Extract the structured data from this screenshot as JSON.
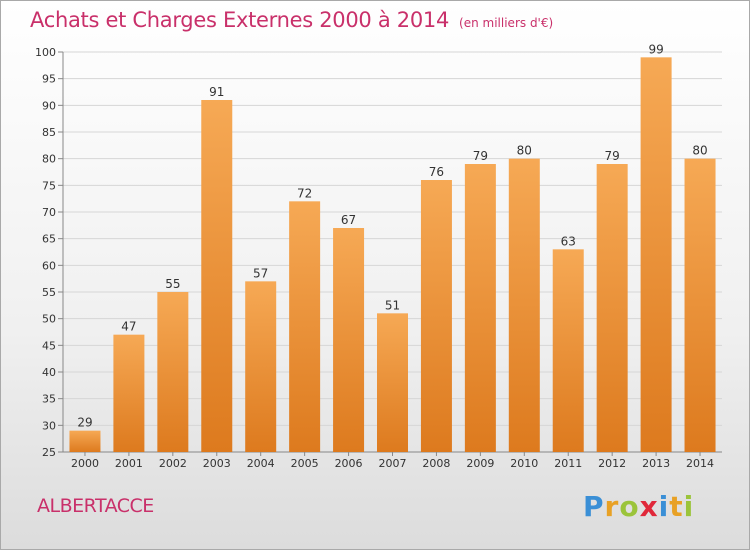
{
  "title": "Achats et Charges Externes 2000 à 2014",
  "subtitle": "(en milliers d'€)",
  "commune": "ALBERTACCE",
  "logo_letters": [
    "P",
    "r",
    "o",
    "x",
    "i",
    "t",
    "i"
  ],
  "colors": {
    "accent": "#c9306a",
    "bar_top": "#f6a955",
    "bar_bottom": "#dd7a1e",
    "grid": "#d6d6d6"
  },
  "chart_data": {
    "type": "bar",
    "title": "Achats et Charges Externes 2000 à 2014",
    "subtitle": "(en milliers d'€)",
    "categories": [
      "2000",
      "2001",
      "2002",
      "2003",
      "2004",
      "2005",
      "2006",
      "2007",
      "2008",
      "2009",
      "2010",
      "2011",
      "2012",
      "2013",
      "2014"
    ],
    "values": [
      29,
      47,
      55,
      91,
      57,
      72,
      67,
      51,
      76,
      79,
      80,
      63,
      79,
      99,
      80
    ],
    "ylim": [
      25,
      100
    ],
    "yticks": [
      25,
      30,
      35,
      40,
      45,
      50,
      55,
      60,
      65,
      70,
      75,
      80,
      85,
      90,
      95,
      100
    ],
    "grid": true,
    "xlabel": "",
    "ylabel": ""
  }
}
